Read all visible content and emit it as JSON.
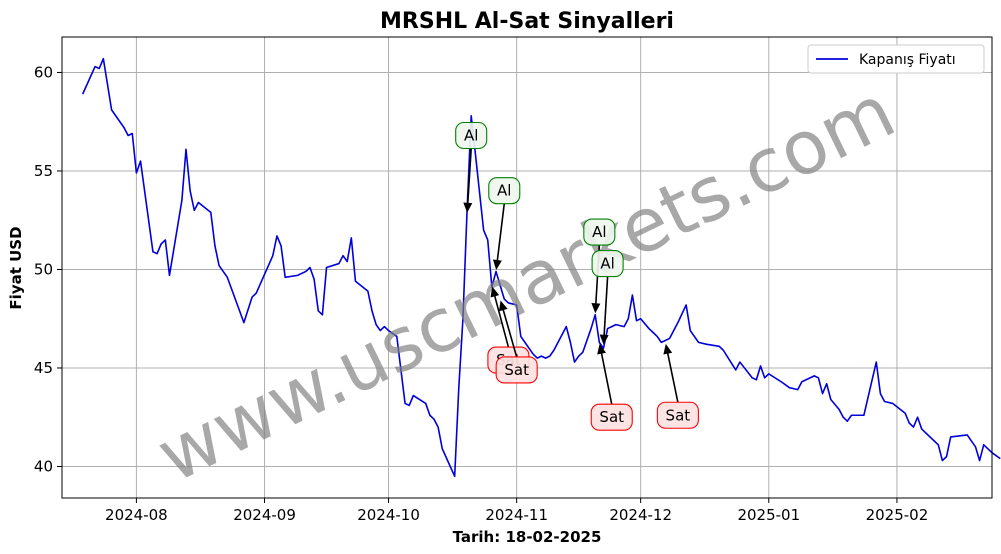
{
  "chart_data": {
    "type": "line",
    "title": "MRSHL Al-Sat Sinyalleri",
    "xlabel": "Tarih: 18-02-2025",
    "ylabel": "Fiyat USD",
    "watermark": "www.uscmarkets.com",
    "legend_position": "top-right",
    "grid": true,
    "xlim": [
      "2024-07-14",
      "2025-02-24"
    ],
    "ylim": [
      38.4,
      61.8
    ],
    "x_ticks": [
      "2024-08-01",
      "2024-09-01",
      "2024-10-01",
      "2024-11-01",
      "2024-12-01",
      "2025-01-01",
      "2025-02-01"
    ],
    "x_tick_labels": [
      "2024-08",
      "2024-09",
      "2024-10",
      "2024-11",
      "2024-12",
      "2025-01",
      "2025-02"
    ],
    "y_ticks": [
      40,
      45,
      50,
      55,
      60
    ],
    "y_tick_labels": [
      "40",
      "45",
      "50",
      "55",
      "60"
    ],
    "series": [
      {
        "name": "Kapanış Fiyatı",
        "color": "#0000dd",
        "points": [
          [
            "2024-07-19",
            58.9
          ],
          [
            "2024-07-22",
            60.3
          ],
          [
            "2024-07-23",
            60.2
          ],
          [
            "2024-07-24",
            60.7
          ],
          [
            "2024-07-26",
            58.1
          ],
          [
            "2024-07-29",
            57.2
          ],
          [
            "2024-07-30",
            56.8
          ],
          [
            "2024-07-31",
            56.9
          ],
          [
            "2024-08-01",
            54.9
          ],
          [
            "2024-08-02",
            55.5
          ],
          [
            "2024-08-05",
            50.9
          ],
          [
            "2024-08-06",
            50.8
          ],
          [
            "2024-08-07",
            51.3
          ],
          [
            "2024-08-08",
            51.5
          ],
          [
            "2024-08-09",
            49.7
          ],
          [
            "2024-08-12",
            53.5
          ],
          [
            "2024-08-13",
            56.1
          ],
          [
            "2024-08-14",
            54.0
          ],
          [
            "2024-08-15",
            53.0
          ],
          [
            "2024-08-16",
            53.4
          ],
          [
            "2024-08-19",
            52.9
          ],
          [
            "2024-08-20",
            51.2
          ],
          [
            "2024-08-21",
            50.2
          ],
          [
            "2024-08-23",
            49.6
          ],
          [
            "2024-08-27",
            47.3
          ],
          [
            "2024-08-29",
            48.6
          ],
          [
            "2024-08-30",
            48.8
          ],
          [
            "2024-09-03",
            50.7
          ],
          [
            "2024-09-04",
            51.7
          ],
          [
            "2024-09-05",
            51.2
          ],
          [
            "2024-09-06",
            49.6
          ],
          [
            "2024-09-09",
            49.7
          ],
          [
            "2024-09-11",
            49.9
          ],
          [
            "2024-09-12",
            50.1
          ],
          [
            "2024-09-13",
            49.5
          ],
          [
            "2024-09-14",
            47.9
          ],
          [
            "2024-09-15",
            47.7
          ],
          [
            "2024-09-16",
            50.1
          ],
          [
            "2024-09-19",
            50.3
          ],
          [
            "2024-09-20",
            50.7
          ],
          [
            "2024-09-21",
            50.4
          ],
          [
            "2024-09-22",
            51.6
          ],
          [
            "2024-09-23",
            49.4
          ],
          [
            "2024-09-26",
            48.9
          ],
          [
            "2024-09-27",
            47.9
          ],
          [
            "2024-09-28",
            47.2
          ],
          [
            "2024-09-29",
            46.9
          ],
          [
            "2024-09-30",
            47.1
          ],
          [
            "2024-10-01",
            46.9
          ],
          [
            "2024-10-03",
            46.6
          ],
          [
            "2024-10-05",
            43.2
          ],
          [
            "2024-10-06",
            43.1
          ],
          [
            "2024-10-07",
            43.6
          ],
          [
            "2024-10-10",
            43.2
          ],
          [
            "2024-10-11",
            42.6
          ],
          [
            "2024-10-12",
            42.4
          ],
          [
            "2024-10-13",
            42.0
          ],
          [
            "2024-10-14",
            40.9
          ],
          [
            "2024-10-17",
            39.5
          ],
          [
            "2024-10-18",
            44.0
          ],
          [
            "2024-10-19",
            47.5
          ],
          [
            "2024-10-20",
            53.0
          ],
          [
            "2024-10-21",
            57.8
          ],
          [
            "2024-10-22",
            55.9
          ],
          [
            "2024-10-24",
            52.0
          ],
          [
            "2024-10-25",
            51.5
          ],
          [
            "2024-10-26",
            49.1
          ],
          [
            "2024-10-27",
            49.9
          ],
          [
            "2024-10-29",
            48.5
          ],
          [
            "2024-10-30",
            48.3
          ],
          [
            "2024-11-01",
            48.2
          ],
          [
            "2024-11-02",
            46.6
          ],
          [
            "2024-11-03",
            46.3
          ],
          [
            "2024-11-05",
            45.7
          ],
          [
            "2024-11-06",
            45.5
          ],
          [
            "2024-11-07",
            45.6
          ],
          [
            "2024-11-08",
            45.5
          ],
          [
            "2024-11-09",
            45.6
          ],
          [
            "2024-11-10",
            45.9
          ],
          [
            "2024-11-11",
            46.3
          ],
          [
            "2024-11-13",
            47.1
          ],
          [
            "2024-11-14",
            46.3
          ],
          [
            "2024-11-15",
            45.3
          ],
          [
            "2024-11-16",
            45.6
          ],
          [
            "2024-11-17",
            45.8
          ],
          [
            "2024-11-19",
            47.0
          ],
          [
            "2024-11-20",
            47.7
          ],
          [
            "2024-11-21",
            46.3
          ],
          [
            "2024-11-22",
            46.0
          ],
          [
            "2024-11-23",
            47.0
          ],
          [
            "2024-11-24",
            47.1
          ],
          [
            "2024-11-25",
            47.2
          ],
          [
            "2024-11-27",
            47.1
          ],
          [
            "2024-11-28",
            47.5
          ],
          [
            "2024-11-29",
            48.7
          ],
          [
            "2024-11-30",
            47.4
          ],
          [
            "2024-12-01",
            47.5
          ],
          [
            "2024-12-03",
            47.0
          ],
          [
            "2024-12-04",
            46.8
          ],
          [
            "2024-12-05",
            46.6
          ],
          [
            "2024-12-06",
            46.3
          ],
          [
            "2024-12-08",
            46.5
          ],
          [
            "2024-12-10",
            47.3
          ],
          [
            "2024-12-12",
            48.2
          ],
          [
            "2024-12-13",
            46.9
          ],
          [
            "2024-12-15",
            46.3
          ],
          [
            "2024-12-17",
            46.2
          ],
          [
            "2024-12-20",
            46.1
          ],
          [
            "2024-12-21",
            45.9
          ],
          [
            "2024-12-24",
            44.9
          ],
          [
            "2024-12-25",
            45.3
          ],
          [
            "2024-12-28",
            44.5
          ],
          [
            "2024-12-29",
            44.4
          ],
          [
            "2024-12-30",
            45.1
          ],
          [
            "2024-12-31",
            44.5
          ],
          [
            "2025-01-01",
            44.7
          ],
          [
            "2025-01-04",
            44.3
          ],
          [
            "2025-01-06",
            44.0
          ],
          [
            "2025-01-08",
            43.9
          ],
          [
            "2025-01-09",
            44.3
          ],
          [
            "2025-01-12",
            44.6
          ],
          [
            "2025-01-13",
            44.5
          ],
          [
            "2025-01-14",
            43.7
          ],
          [
            "2025-01-15",
            44.2
          ],
          [
            "2025-01-16",
            43.4
          ],
          [
            "2025-01-18",
            42.9
          ],
          [
            "2025-01-19",
            42.5
          ],
          [
            "2025-01-20",
            42.3
          ],
          [
            "2025-01-21",
            42.6
          ],
          [
            "2025-01-24",
            42.6
          ],
          [
            "2025-01-27",
            45.3
          ],
          [
            "2025-01-28",
            43.7
          ],
          [
            "2025-01-29",
            43.3
          ],
          [
            "2025-01-31",
            43.2
          ],
          [
            "2025-02-03",
            42.7
          ],
          [
            "2025-02-04",
            42.2
          ],
          [
            "2025-02-05",
            42.0
          ],
          [
            "2025-02-06",
            42.5
          ],
          [
            "2025-02-07",
            41.9
          ],
          [
            "2025-02-10",
            41.3
          ],
          [
            "2025-02-11",
            41.1
          ],
          [
            "2025-02-12",
            40.3
          ],
          [
            "2025-02-13",
            40.5
          ],
          [
            "2025-02-14",
            41.5
          ],
          [
            "2025-02-18",
            41.6
          ],
          [
            "2025-02-20",
            41.0
          ],
          [
            "2025-02-21",
            40.3
          ],
          [
            "2025-02-22",
            41.1
          ],
          [
            "2025-02-24",
            40.7
          ],
          [
            "2025-02-26",
            40.4
          ]
        ]
      }
    ],
    "annotations": [
      {
        "text": "Al",
        "type": "buy",
        "point": [
          "2024-10-20",
          52.8
        ],
        "label_at": [
          "2024-10-21",
          56.8
        ]
      },
      {
        "text": "Al",
        "type": "buy",
        "point": [
          "2024-10-27",
          49.9
        ],
        "label_at": [
          "2024-10-29",
          54.0
        ]
      },
      {
        "text": "Sat",
        "type": "sell",
        "point": [
          "2024-10-26",
          49.2
        ],
        "label_at": [
          "2024-10-30",
          45.4
        ]
      },
      {
        "text": "Sat",
        "type": "sell",
        "point": [
          "2024-10-28",
          48.5
        ],
        "label_at": [
          "2024-11-01",
          44.9
        ]
      },
      {
        "text": "Al",
        "type": "buy",
        "point": [
          "2024-11-20",
          47.7
        ],
        "label_at": [
          "2024-11-21",
          51.9
        ]
      },
      {
        "text": "Al",
        "type": "buy",
        "point": [
          "2024-11-22",
          46.1
        ],
        "label_at": [
          "2024-11-23",
          50.3
        ]
      },
      {
        "text": "Sat",
        "type": "sell",
        "point": [
          "2024-11-21",
          46.3
        ],
        "label_at": [
          "2024-11-24",
          42.5
        ]
      },
      {
        "text": "Sat",
        "type": "sell",
        "point": [
          "2024-12-07",
          46.3
        ],
        "label_at": [
          "2024-12-10",
          42.6
        ]
      }
    ],
    "colors": {
      "buy_edge": "#008000",
      "buy_fill": "#eef6ee",
      "sell_edge": "#ff0000",
      "sell_fill": "#fde2e2",
      "grid": "#b0b0b0"
    }
  }
}
